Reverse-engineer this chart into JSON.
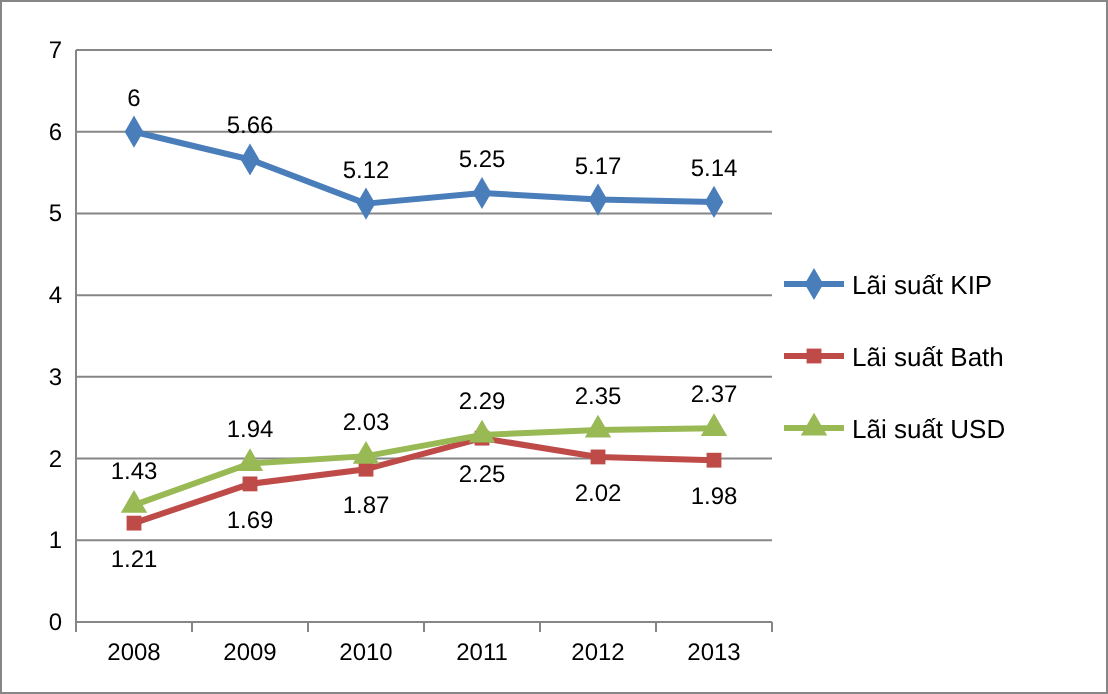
{
  "chart_data": {
    "type": "line",
    "categories": [
      "2008",
      "2009",
      "2010",
      "2011",
      "2012",
      "2013"
    ],
    "series": [
      {
        "name": "Lãi suất KIP",
        "color": "#4a7ebb",
        "marker": "diamond",
        "values": [
          6,
          5.66,
          5.12,
          5.25,
          5.17,
          5.14
        ]
      },
      {
        "name": "Lãi suất Bath",
        "color": "#be4b48",
        "marker": "square",
        "values": [
          1.21,
          1.69,
          1.87,
          2.25,
          2.02,
          1.98
        ]
      },
      {
        "name": "Lãi suất USD",
        "color": "#98b954",
        "marker": "triangle",
        "values": [
          1.43,
          1.94,
          2.03,
          2.29,
          2.35,
          2.37
        ]
      }
    ],
    "ylim": [
      0,
      7
    ],
    "yticks": [
      0,
      1,
      2,
      3,
      4,
      5,
      6,
      7
    ],
    "grid": "y",
    "legend": "right",
    "data_labels": true
  }
}
